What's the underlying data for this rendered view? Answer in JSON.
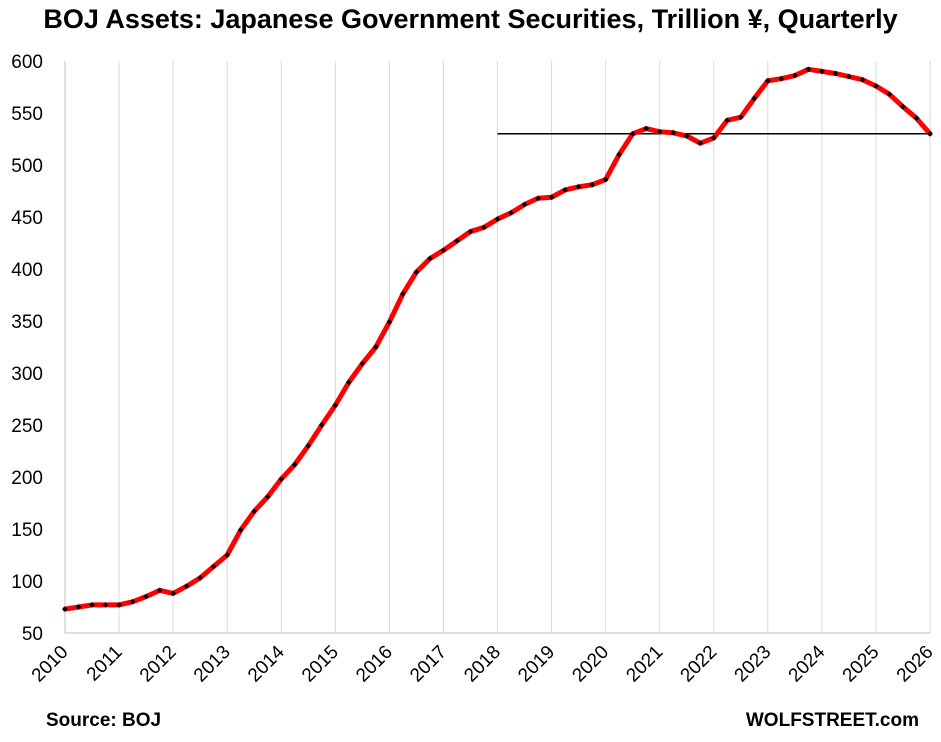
{
  "chart_data": {
    "type": "line",
    "title": "BOJ Assets: Japanese Government Securities, Trillion ¥, Quarterly",
    "xlabel": "",
    "ylabel": "",
    "ylim": [
      50,
      600
    ],
    "yticks": [
      50,
      100,
      150,
      200,
      250,
      300,
      350,
      400,
      450,
      500,
      550,
      600
    ],
    "xlim": [
      2010,
      2026
    ],
    "xticks": [
      "2010",
      "2011",
      "2012",
      "2013",
      "2014",
      "2015",
      "2016",
      "2017",
      "2018",
      "2019",
      "2020",
      "2021",
      "2022",
      "2023",
      "2024",
      "2025",
      "2026"
    ],
    "grid": "vertical",
    "legend": "none",
    "series": [
      {
        "color": "#ff0000",
        "marker_color": "#000000",
        "points": [
          [
            2010.0,
            73
          ],
          [
            2010.25,
            75
          ],
          [
            2010.5,
            77
          ],
          [
            2010.75,
            77
          ],
          [
            2011.0,
            77
          ],
          [
            2011.25,
            80
          ],
          [
            2011.5,
            85
          ],
          [
            2011.75,
            91
          ],
          [
            2012.0,
            88
          ],
          [
            2012.25,
            95
          ],
          [
            2012.5,
            103
          ],
          [
            2012.75,
            114
          ],
          [
            2013.0,
            125
          ],
          [
            2013.25,
            149
          ],
          [
            2013.5,
            167
          ],
          [
            2013.75,
            181
          ],
          [
            2014.0,
            198
          ],
          [
            2014.25,
            212
          ],
          [
            2014.5,
            230
          ],
          [
            2014.75,
            250
          ],
          [
            2015.0,
            269
          ],
          [
            2015.25,
            291
          ],
          [
            2015.5,
            309
          ],
          [
            2015.75,
            325
          ],
          [
            2016.0,
            349
          ],
          [
            2016.25,
            376
          ],
          [
            2016.5,
            397
          ],
          [
            2016.75,
            410
          ],
          [
            2017.0,
            418
          ],
          [
            2017.25,
            427
          ],
          [
            2017.5,
            436
          ],
          [
            2017.75,
            440
          ],
          [
            2018.0,
            448
          ],
          [
            2018.25,
            454
          ],
          [
            2018.5,
            462
          ],
          [
            2018.75,
            468
          ],
          [
            2019.0,
            469
          ],
          [
            2019.25,
            476
          ],
          [
            2019.5,
            479
          ],
          [
            2019.75,
            481
          ],
          [
            2020.0,
            486
          ],
          [
            2020.25,
            510
          ],
          [
            2020.5,
            530
          ],
          [
            2020.75,
            535
          ],
          [
            2021.0,
            532
          ],
          [
            2021.25,
            531
          ],
          [
            2021.5,
            528
          ],
          [
            2021.75,
            521
          ],
          [
            2022.0,
            526
          ],
          [
            2022.25,
            543
          ],
          [
            2022.5,
            546
          ],
          [
            2022.75,
            564
          ],
          [
            2023.0,
            581
          ],
          [
            2023.25,
            583
          ],
          [
            2023.5,
            586
          ],
          [
            2023.75,
            592
          ],
          [
            2024.0,
            590
          ],
          [
            2024.25,
            588
          ],
          [
            2024.5,
            585
          ],
          [
            2024.75,
            582
          ],
          [
            2025.0,
            576
          ],
          [
            2025.25,
            568
          ],
          [
            2025.5,
            556
          ],
          [
            2025.75,
            545
          ],
          [
            2026.0,
            530
          ]
        ]
      }
    ],
    "reference_line": {
      "value": 530,
      "x_start": 2018,
      "x_end": 2026,
      "color": "#000000"
    }
  },
  "footer": {
    "source": "Source: BOJ",
    "site": "WOLFSTREET.com"
  }
}
